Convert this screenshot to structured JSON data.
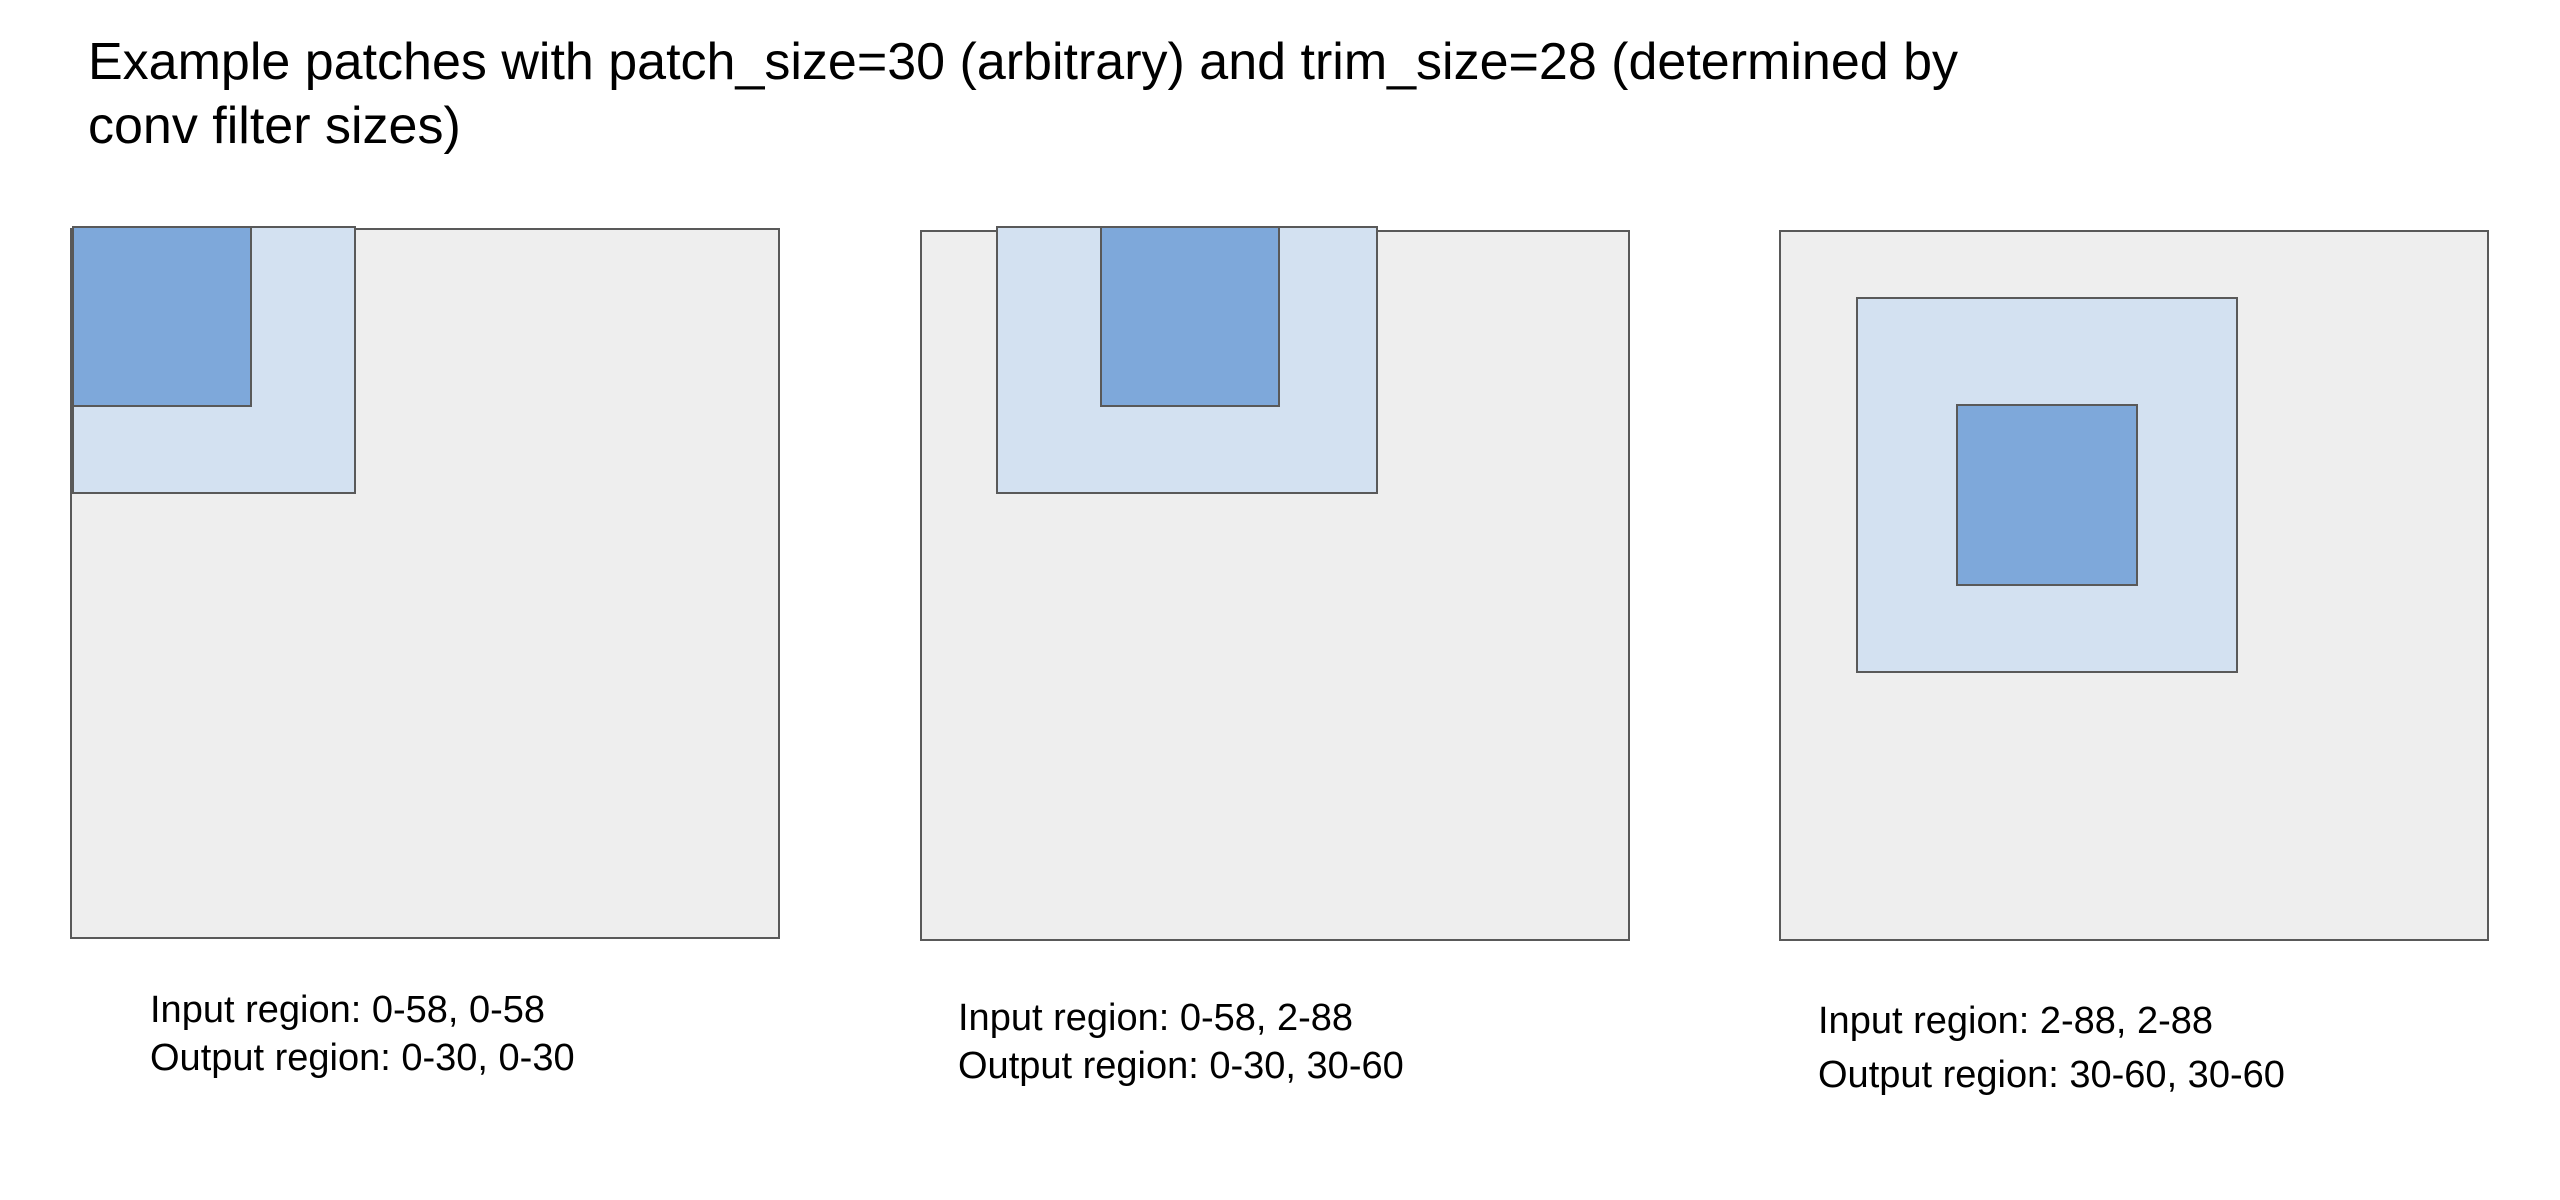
{
  "title": "Example patches with patch_size=30 (arbitrary) and trim_size=28 (determined by conv filter sizes)",
  "colors": {
    "canvas_fill": "#eeeeee",
    "input_region_fill": "#d3e1f1",
    "output_region_fill": "#7ea8da",
    "border": "#595959"
  },
  "panels": [
    {
      "input_label": "Input region: 0-58, 0-58",
      "output_label": "Output region: 0-30, 0-30"
    },
    {
      "input_label": "Input region: 0-58, 2-88",
      "output_label": "Output region: 0-30, 30-60"
    },
    {
      "input_label": "Input region: 2-88, 2-88",
      "output_label": "Output region: 30-60, 30-60"
    }
  ]
}
